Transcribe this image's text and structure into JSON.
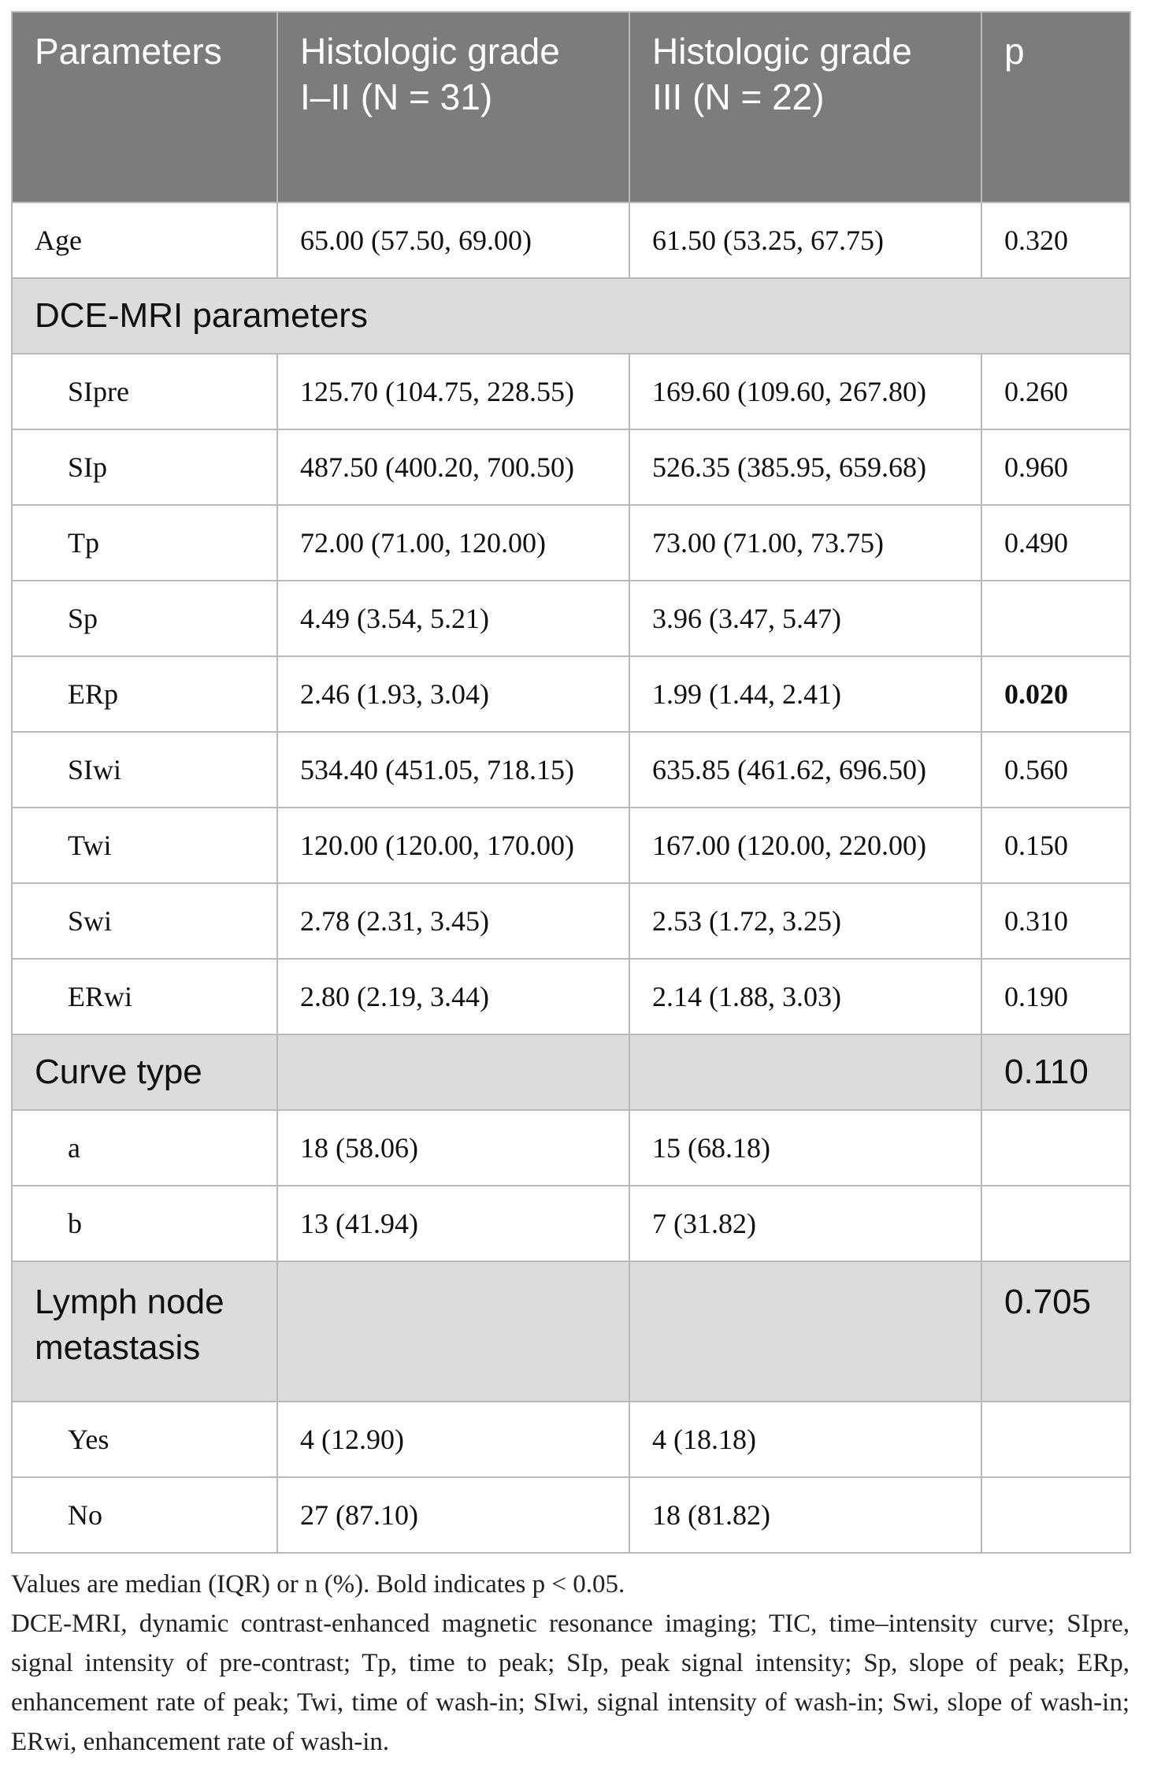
{
  "table": {
    "headers": [
      "Parameters",
      "Histologic grade I–II (N = 31)",
      "Histologic grade III (N = 22)",
      "p"
    ],
    "rows": {
      "age": {
        "label": "Age",
        "g12": "65.00 (57.50, 69.00)",
        "g3": "61.50 (53.25, 67.75)",
        "p": "0.320"
      },
      "dce_section": {
        "label": "DCE-MRI parameters"
      },
      "sipre": {
        "label": "SIpre",
        "g12": "125.70 (104.75, 228.55)",
        "g3": "169.60 (109.60, 267.80)",
        "p": "0.260"
      },
      "sip": {
        "label": "SIp",
        "g12": "487.50 (400.20, 700.50)",
        "g3": "526.35 (385.95, 659.68)",
        "p": "0.960"
      },
      "tp": {
        "label": "Tp",
        "g12": "72.00 (71.00, 120.00)",
        "g3": "73.00 (71.00, 73.75)",
        "p": "0.490"
      },
      "sp": {
        "label": "Sp",
        "g12": "4.49 (3.54, 5.21)",
        "g3": "3.96 (3.47, 5.47)",
        "p": ""
      },
      "erp": {
        "label": "ERp",
        "g12": "2.46 (1.93, 3.04)",
        "g3": "1.99 (1.44, 2.41)",
        "p": "0.020"
      },
      "siwi": {
        "label": "SIwi",
        "g12": "534.40 (451.05, 718.15)",
        "g3": "635.85 (461.62, 696.50)",
        "p": "0.560"
      },
      "twi": {
        "label": "Twi",
        "g12": "120.00 (120.00, 170.00)",
        "g3": "167.00 (120.00, 220.00)",
        "p": "0.150"
      },
      "swi": {
        "label": "Swi",
        "g12": "2.78 (2.31, 3.45)",
        "g3": "2.53 (1.72, 3.25)",
        "p": "0.310"
      },
      "erwi": {
        "label": "ERwi",
        "g12": "2.80 (2.19, 3.44)",
        "g3": "2.14 (1.88, 3.03)",
        "p": "0.190"
      },
      "curve_section": {
        "label": "Curve type",
        "p": "0.110"
      },
      "curve_a": {
        "label": "a",
        "g12": "18 (58.06)",
        "g3": "15 (68.18)",
        "p": ""
      },
      "curve_b": {
        "label": "b",
        "g12": "13 (41.94)",
        "g3": "7 (31.82)",
        "p": ""
      },
      "lymph_section": {
        "label": "Lymph node metastasis",
        "p": "0.705"
      },
      "lymph_yes": {
        "label": "Yes",
        "g12": "4 (12.90)",
        "g3": "4 (18.18)",
        "p": ""
      },
      "lymph_no": {
        "label": "No",
        "g12": "27 (87.10)",
        "g3": "18 (81.82)",
        "p": ""
      }
    }
  },
  "footnotes": {
    "note1": "Values are median (IQR) or n (%). Bold indicates p < 0.05.",
    "note2": "DCE-MRI, dynamic contrast-enhanced magnetic resonance imaging; TIC, time–intensity curve; SIpre, signal intensity of pre-contrast; Tp, time to peak; SIp, peak signal intensity; Sp, slope of peak; ERp, enhancement rate of peak; Twi, time of wash-in; SIwi, signal intensity of wash-in; Swi, slope of wash-in; ERwi, enhancement rate of wash-in."
  }
}
